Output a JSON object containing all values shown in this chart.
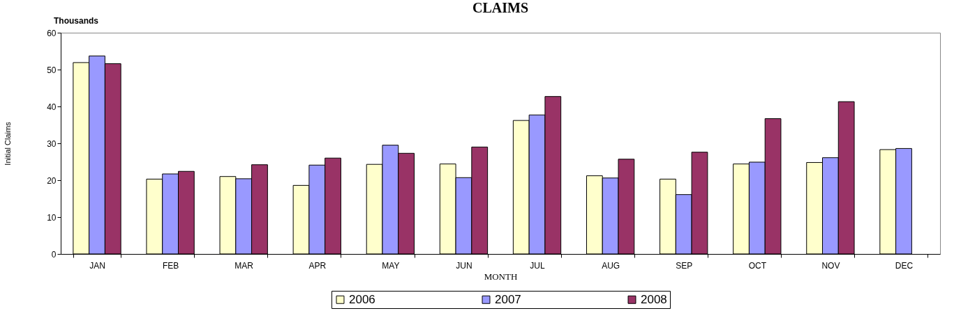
{
  "chart_data": {
    "type": "bar",
    "title": "CLAIMS",
    "xlabel": "MONTH",
    "ylabel": "Initial Claims",
    "annotations": [
      "Thousands"
    ],
    "categories": [
      "JAN",
      "FEB",
      "MAR",
      "APR",
      "MAY",
      "JUN",
      "JUL",
      "AUG",
      "SEP",
      "OCT",
      "NOV",
      "DEC"
    ],
    "series": [
      {
        "name": "2006",
        "color": "#ffffcc",
        "values": [
          51.9,
          20.3,
          21.0,
          18.6,
          24.3,
          24.4,
          36.2,
          21.2,
          20.3,
          24.4,
          24.8,
          28.3
        ]
      },
      {
        "name": "2007",
        "color": "#9999ff",
        "values": [
          53.7,
          21.7,
          20.4,
          24.1,
          29.5,
          20.7,
          37.7,
          20.6,
          16.1,
          24.9,
          26.1,
          28.6
        ]
      },
      {
        "name": "2008",
        "color": "#993366",
        "values": [
          51.6,
          22.4,
          24.2,
          26.0,
          27.3,
          29.0,
          42.7,
          25.7,
          27.6,
          36.7,
          41.3,
          null
        ]
      }
    ],
    "ylim": [
      0,
      60
    ],
    "yticks": [
      0,
      10,
      20,
      30,
      40,
      50,
      60
    ],
    "grid": false,
    "legend": "bottom"
  }
}
